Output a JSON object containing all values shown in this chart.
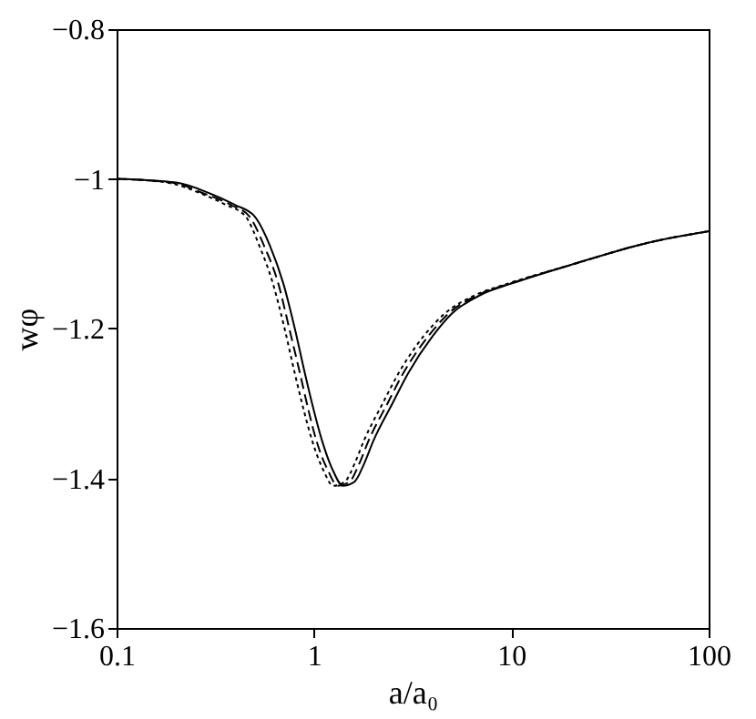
{
  "chart_data": {
    "type": "line",
    "xlabel": "a/a₀",
    "ylabel": "wφ",
    "log": "x",
    "xlim": [
      0.1,
      100
    ],
    "xticks": [
      0.1,
      1,
      10,
      100
    ],
    "ylim": [
      -1.6,
      -0.8
    ],
    "yticks": [
      -1.6,
      -1.4,
      -1.2,
      -1,
      -0.8
    ],
    "grid": false,
    "series": [
      {
        "color": "#000000",
        "line_style": "solid",
        "x": [
          0.1,
          0.2,
          0.3,
          0.4,
          0.5,
          0.6,
          0.7,
          0.8,
          0.9,
          1.0,
          1.1,
          1.25,
          1.4,
          1.6,
          1.8,
          2,
          2.5,
          3,
          4,
          5,
          7,
          10,
          20,
          50,
          100
        ],
        "values": [
          -1.0,
          -1.005,
          -1.02,
          -1.035,
          -1.05,
          -1.09,
          -1.14,
          -1.2,
          -1.26,
          -1.31,
          -1.35,
          -1.39,
          -1.41,
          -1.405,
          -1.38,
          -1.35,
          -1.3,
          -1.26,
          -1.21,
          -1.18,
          -1.155,
          -1.14,
          -1.115,
          -1.085,
          -1.07
        ]
      },
      {
        "color": "#000000",
        "line_style": "dashed",
        "x": [
          0.1,
          0.19,
          0.28,
          0.38,
          0.47,
          0.56,
          0.66,
          0.75,
          0.85,
          0.94,
          1.03,
          1.18,
          1.32,
          1.51,
          1.7,
          1.89,
          2.36,
          2.83,
          3.8,
          4.8,
          6.8,
          9.8,
          20,
          50,
          100
        ],
        "values": [
          -1.0,
          -1.005,
          -1.02,
          -1.035,
          -1.05,
          -1.09,
          -1.14,
          -1.2,
          -1.26,
          -1.31,
          -1.35,
          -1.39,
          -1.41,
          -1.405,
          -1.38,
          -1.35,
          -1.3,
          -1.26,
          -1.21,
          -1.18,
          -1.155,
          -1.14,
          -1.115,
          -1.085,
          -1.07
        ]
      },
      {
        "color": "#000000",
        "line_style": "dotted",
        "x": [
          0.1,
          0.18,
          0.27,
          0.36,
          0.45,
          0.53,
          0.62,
          0.71,
          0.8,
          0.89,
          0.98,
          1.12,
          1.25,
          1.43,
          1.61,
          1.79,
          2.23,
          2.68,
          3.6,
          4.6,
          6.6,
          9.6,
          20,
          50,
          100
        ],
        "values": [
          -1.0,
          -1.005,
          -1.02,
          -1.035,
          -1.05,
          -1.09,
          -1.14,
          -1.2,
          -1.26,
          -1.31,
          -1.35,
          -1.39,
          -1.41,
          -1.405,
          -1.38,
          -1.35,
          -1.3,
          -1.26,
          -1.21,
          -1.18,
          -1.155,
          -1.14,
          -1.115,
          -1.085,
          -1.07
        ]
      }
    ]
  }
}
